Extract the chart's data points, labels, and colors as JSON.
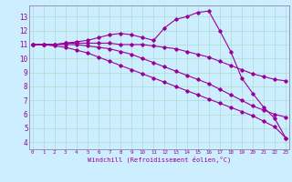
{
  "xlabel": "Windchill (Refroidissement éolien,°C)",
  "bg_color": "#cceeff",
  "line_color": "#990099",
  "grid_color": "#aaddcc",
  "x_ticks": [
    0,
    1,
    2,
    3,
    4,
    5,
    6,
    7,
    8,
    9,
    10,
    11,
    12,
    13,
    14,
    15,
    16,
    17,
    18,
    19,
    20,
    21,
    22,
    23
  ],
  "y_ticks": [
    4,
    5,
    6,
    7,
    8,
    9,
    10,
    11,
    12,
    13
  ],
  "ylim": [
    3.5,
    13.8
  ],
  "xlim": [
    -0.3,
    23.3
  ],
  "series1": [
    11.0,
    11.0,
    11.0,
    11.1,
    11.2,
    11.3,
    11.5,
    11.7,
    11.8,
    11.7,
    11.5,
    11.3,
    12.2,
    12.8,
    13.0,
    13.3,
    13.4,
    12.0,
    10.5,
    8.6,
    7.5,
    6.5,
    5.7,
    4.3
  ],
  "series2": [
    11.0,
    11.0,
    11.0,
    11.1,
    11.1,
    11.1,
    11.1,
    11.1,
    11.0,
    11.0,
    11.0,
    10.9,
    10.8,
    10.7,
    10.5,
    10.3,
    10.1,
    9.8,
    9.5,
    9.2,
    8.9,
    8.7,
    8.5,
    8.4
  ],
  "series3": [
    11.0,
    11.0,
    11.0,
    11.0,
    11.0,
    10.9,
    10.8,
    10.7,
    10.5,
    10.3,
    10.0,
    9.7,
    9.4,
    9.1,
    8.8,
    8.5,
    8.2,
    7.8,
    7.4,
    7.0,
    6.6,
    6.3,
    6.0,
    5.8
  ],
  "series4": [
    11.0,
    11.0,
    10.9,
    10.8,
    10.6,
    10.4,
    10.1,
    9.8,
    9.5,
    9.2,
    8.9,
    8.6,
    8.3,
    8.0,
    7.7,
    7.4,
    7.1,
    6.8,
    6.5,
    6.2,
    5.9,
    5.5,
    5.1,
    4.3
  ]
}
